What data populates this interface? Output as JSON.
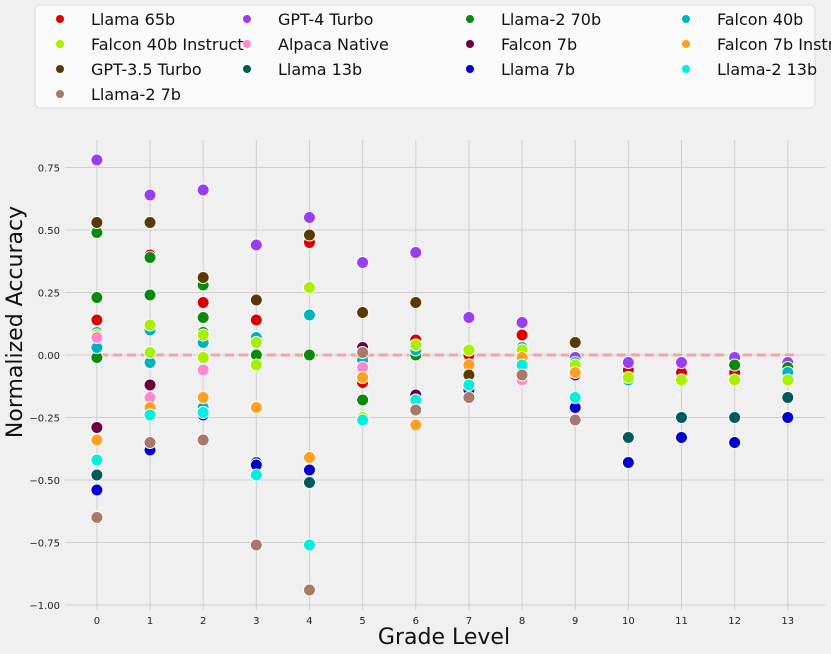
{
  "chart_data": {
    "type": "scatter",
    "xlabel": "Grade Level",
    "ylabel": "Normalized Accuracy",
    "x_ticks": [
      0,
      1,
      2,
      3,
      4,
      5,
      6,
      7,
      8,
      9,
      10,
      11,
      12,
      13
    ],
    "y_ticks": [
      -1.0,
      -0.75,
      -0.5,
      -0.25,
      0.0,
      0.25,
      0.5,
      0.75
    ],
    "x_tick_labels": [
      "0",
      "1",
      "2",
      "3",
      "4",
      "5",
      "6",
      "7",
      "8",
      "9",
      "10",
      "11",
      "12",
      "13"
    ],
    "y_tick_labels": [
      "−1.00",
      "−0.75",
      "−0.50",
      "−0.25",
      "0.00",
      "0.25",
      "0.50",
      "0.75"
    ],
    "xlim": [
      -0.6,
      13.7
    ],
    "ylim": [
      -1.02,
      0.86
    ],
    "grid": true,
    "legend_position": "top",
    "reference_line": {
      "y": 0,
      "color": "#f4a5a0",
      "style": "dashed"
    },
    "series": [
      {
        "name": "Llama 65b",
        "color": "#dd0000",
        "points": [
          [
            0,
            0.14
          ],
          [
            1,
            0.4
          ],
          [
            2,
            0.21
          ],
          [
            3,
            0.14
          ],
          [
            4,
            0.45
          ],
          [
            5,
            -0.11
          ],
          [
            6,
            0.06
          ],
          [
            7,
            0.0
          ],
          [
            8,
            0.08
          ],
          [
            9,
            -0.05
          ],
          [
            10,
            -0.06
          ],
          [
            11,
            -0.07
          ],
          [
            12,
            -0.07
          ],
          [
            13,
            -0.07
          ]
        ]
      },
      {
        "name": "GPT-4 Turbo",
        "color": "#9b3df5",
        "points": [
          [
            0,
            0.78
          ],
          [
            1,
            0.64
          ],
          [
            2,
            0.66
          ],
          [
            3,
            0.44
          ],
          [
            4,
            0.55
          ],
          [
            5,
            0.37
          ],
          [
            6,
            0.41
          ],
          [
            7,
            0.15
          ],
          [
            8,
            0.13
          ],
          [
            9,
            -0.01
          ],
          [
            10,
            -0.03
          ],
          [
            11,
            -0.03
          ],
          [
            12,
            -0.01
          ],
          [
            13,
            -0.03
          ]
        ]
      },
      {
        "name": "Llama-2 70b",
        "color": "#0a8a0a",
        "points": [
          [
            0,
            0.49
          ],
          [
            0,
            0.23
          ],
          [
            0,
            -0.01
          ],
          [
            1,
            0.39
          ],
          [
            1,
            0.24
          ],
          [
            2,
            0.28
          ],
          [
            2,
            0.15
          ],
          [
            2,
            0.09
          ],
          [
            3,
            0.0
          ],
          [
            4,
            0.0
          ],
          [
            5,
            -0.18
          ],
          [
            6,
            0.0
          ],
          [
            9,
            -0.04
          ],
          [
            12,
            -0.04
          ],
          [
            13,
            -0.05
          ]
        ]
      },
      {
        "name": "Falcon 40b",
        "color": "#00b3c2",
        "points": [
          [
            0,
            0.03
          ],
          [
            0,
            0.09
          ],
          [
            1,
            0.1
          ],
          [
            1,
            -0.03
          ],
          [
            2,
            0.05
          ],
          [
            2,
            -0.21
          ],
          [
            3,
            0.07
          ],
          [
            4,
            0.16
          ],
          [
            5,
            -0.02
          ],
          [
            6,
            0.02
          ],
          [
            7,
            0.02
          ],
          [
            8,
            0.03
          ],
          [
            9,
            -0.03
          ],
          [
            10,
            -0.1
          ],
          [
            13,
            -0.07
          ]
        ]
      },
      {
        "name": "Falcon 40b Instruct",
        "color": "#a6f000",
        "points": [
          [
            0,
            0.08
          ],
          [
            1,
            0.12
          ],
          [
            1,
            0.01
          ],
          [
            2,
            0.08
          ],
          [
            2,
            -0.01
          ],
          [
            3,
            0.05
          ],
          [
            3,
            -0.04
          ],
          [
            4,
            0.27
          ],
          [
            5,
            -0.25
          ],
          [
            6,
            0.04
          ],
          [
            7,
            0.02
          ],
          [
            8,
            0.02
          ],
          [
            9,
            -0.04
          ],
          [
            10,
            -0.09
          ],
          [
            11,
            -0.1
          ],
          [
            12,
            -0.1
          ],
          [
            13,
            -0.1
          ]
        ]
      },
      {
        "name": "Alpaca Native",
        "color": "#ff88d0",
        "points": [
          [
            0,
            0.07
          ],
          [
            1,
            -0.17
          ],
          [
            2,
            -0.06
          ],
          [
            3,
            -0.21
          ],
          [
            5,
            -0.05
          ],
          [
            7,
            -0.04
          ],
          [
            8,
            -0.1
          ]
        ]
      },
      {
        "name": "Falcon 7b",
        "color": "#6a0040",
        "points": [
          [
            0,
            -0.29
          ],
          [
            1,
            -0.12
          ],
          [
            2,
            -0.23
          ],
          [
            5,
            0.03
          ],
          [
            6,
            -0.16
          ],
          [
            9,
            -0.08
          ]
        ]
      },
      {
        "name": "Falcon 7b Instruct",
        "color": "#ffa020",
        "points": [
          [
            0,
            -0.34
          ],
          [
            1,
            -0.21
          ],
          [
            2,
            -0.17
          ],
          [
            3,
            -0.21
          ],
          [
            4,
            -0.41
          ],
          [
            5,
            -0.09
          ],
          [
            6,
            -0.28
          ],
          [
            7,
            -0.04
          ],
          [
            8,
            -0.01
          ],
          [
            9,
            -0.07
          ]
        ]
      },
      {
        "name": "GPT-3.5 Turbo",
        "color": "#5a3a00",
        "points": [
          [
            0,
            0.53
          ],
          [
            1,
            0.53
          ],
          [
            2,
            0.31
          ],
          [
            3,
            0.22
          ],
          [
            4,
            0.48
          ],
          [
            5,
            0.17
          ],
          [
            6,
            0.21
          ],
          [
            7,
            -0.08
          ],
          [
            9,
            0.05
          ]
        ]
      },
      {
        "name": "Llama 13b",
        "color": "#005a5a",
        "points": [
          [
            0,
            -0.48
          ],
          [
            3,
            -0.43
          ],
          [
            4,
            -0.51
          ],
          [
            10,
            -0.33
          ],
          [
            11,
            -0.25
          ],
          [
            12,
            -0.25
          ],
          [
            13,
            -0.17
          ]
        ]
      },
      {
        "name": "Llama 7b",
        "color": "#0000d0",
        "points": [
          [
            0,
            -0.54
          ],
          [
            1,
            -0.38
          ],
          [
            2,
            -0.24
          ],
          [
            3,
            -0.44
          ],
          [
            4,
            -0.46
          ],
          [
            7,
            -0.14
          ],
          [
            9,
            -0.21
          ],
          [
            10,
            -0.43
          ],
          [
            11,
            -0.33
          ],
          [
            12,
            -0.35
          ],
          [
            13,
            -0.25
          ]
        ]
      },
      {
        "name": "Llama-2 13b",
        "color": "#00f0e0",
        "points": [
          [
            0,
            -0.42
          ],
          [
            1,
            -0.24
          ],
          [
            2,
            -0.23
          ],
          [
            3,
            -0.48
          ],
          [
            4,
            -0.76
          ],
          [
            5,
            -0.26
          ],
          [
            6,
            -0.18
          ],
          [
            7,
            -0.12
          ],
          [
            8,
            -0.04
          ],
          [
            9,
            -0.17
          ]
        ]
      },
      {
        "name": "Llama-2 7b",
        "color": "#a87868",
        "points": [
          [
            0,
            -0.65
          ],
          [
            1,
            -0.35
          ],
          [
            2,
            -0.34
          ],
          [
            3,
            -0.76
          ],
          [
            4,
            -0.94
          ],
          [
            5,
            0.01
          ],
          [
            6,
            -0.22
          ],
          [
            7,
            -0.17
          ],
          [
            8,
            -0.08
          ],
          [
            9,
            -0.26
          ]
        ]
      }
    ]
  }
}
